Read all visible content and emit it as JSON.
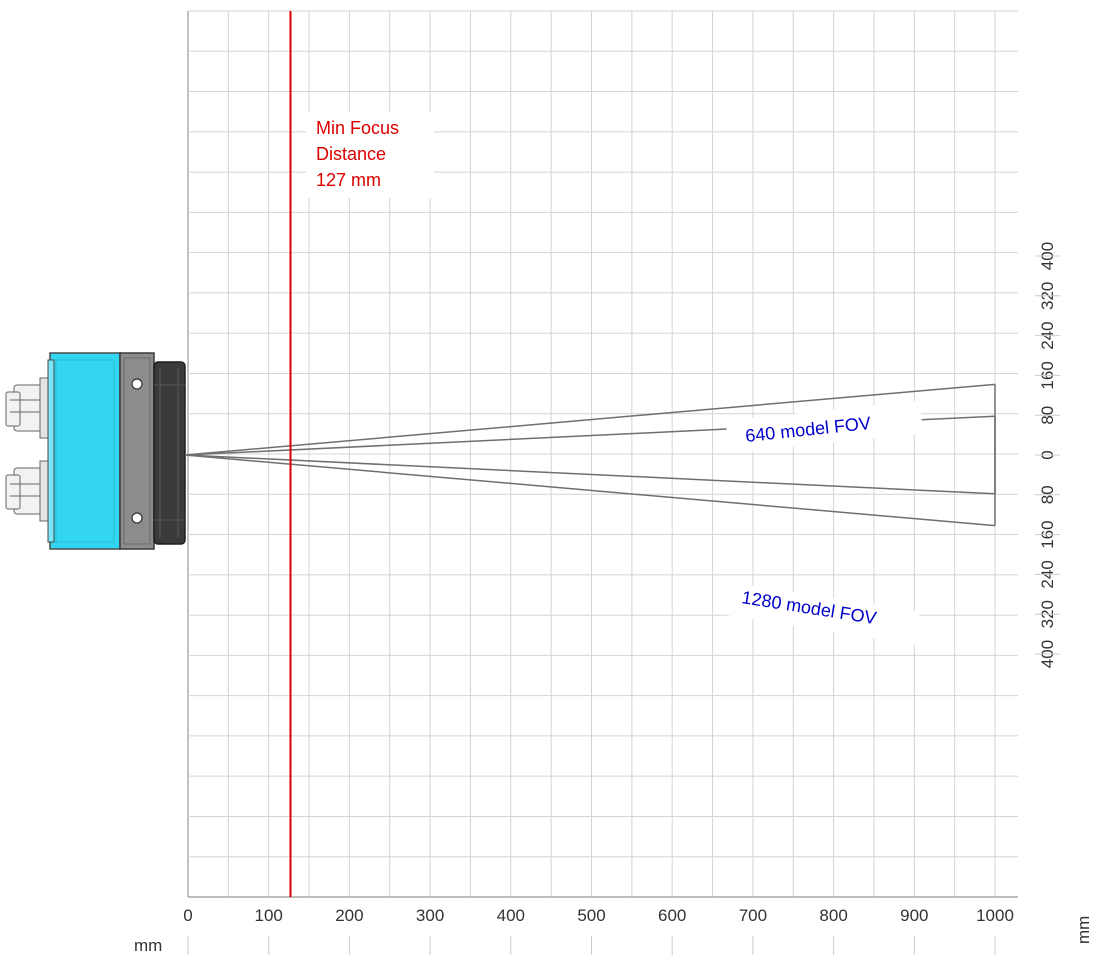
{
  "chart_data": {
    "type": "diagram",
    "x_axis": {
      "unit_label": "mm",
      "ticks": [
        0,
        100,
        200,
        300,
        400,
        500,
        600,
        700,
        800,
        900,
        1000
      ],
      "range": [
        0,
        1000
      ]
    },
    "y_axis": {
      "unit_label": "mm",
      "ticks_upper": [
        "400",
        "320",
        "240",
        "160",
        "80",
        "0"
      ],
      "ticks_lower": [
        "80",
        "160",
        "240",
        "320",
        "400"
      ],
      "range": [
        -400,
        400
      ]
    },
    "grid": true,
    "min_focus": {
      "line1": "Min Focus",
      "line2": "Distance",
      "line3": "127 mm",
      "distance_mm": 127,
      "color": "#dd0000"
    },
    "fov_cones": [
      {
        "label": "640 model FOV",
        "half_width_at_1000_mm": 78
      },
      {
        "label": "1280 model FOV",
        "half_width_at_1000_mm": 142
      }
    ],
    "label_color": "#0000cc"
  }
}
